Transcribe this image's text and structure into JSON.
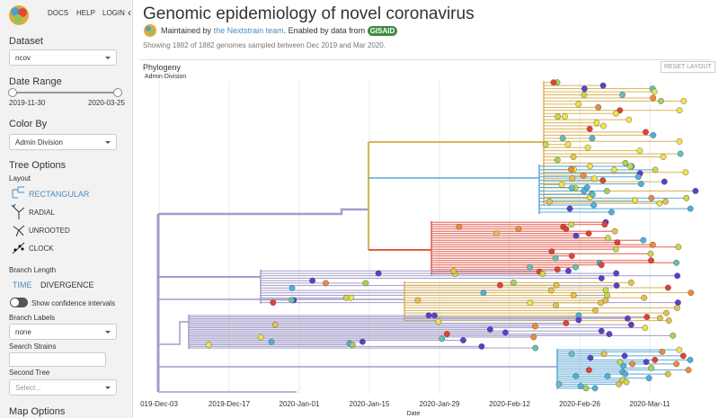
{
  "sidebar": {
    "nav": [
      "DOCS",
      "HELP",
      "LOGIN"
    ],
    "dataset": {
      "label": "Dataset",
      "value": "ncov"
    },
    "date_range": {
      "label": "Date Range",
      "start": "2019-11-30",
      "end": "2020-03-25"
    },
    "color_by": {
      "label": "Color By",
      "value": "Admin Division"
    },
    "tree_options": {
      "title": "Tree Options",
      "layout_label": "Layout",
      "layouts": [
        "RECTANGULAR",
        "RADIAL",
        "UNROOTED",
        "CLOCK"
      ],
      "branch_length_label": "Branch Length",
      "branch_lengths": [
        "TIME",
        "DIVERGENCE"
      ],
      "confidence": "Show confidence intervals",
      "branch_labels": {
        "label": "Branch Labels",
        "value": "none"
      },
      "search_label": "Search Strains",
      "second_tree": {
        "label": "Second Tree",
        "placeholder": "Select..."
      }
    },
    "map_options": "Map Options"
  },
  "header": {
    "title": "Genomic epidemiology of novel coronavirus",
    "maintained_prefix": "Maintained by",
    "maintainer": "the Nextstrain team",
    "enabled": ". Enabled by data from",
    "gisaid": "GISAID",
    "summary": "Showing 1882 of 1882 genomes sampled between Dec 2019 and Mar 2020."
  },
  "panel": {
    "title": "Phylogeny",
    "color_select": "Admin Division",
    "reset": "RESET LAYOUT",
    "x_ticks": [
      "019-Dec-03",
      "2019-Dec-17",
      "2020-Jan-01",
      "2020-Jan-15",
      "2020-Jan-29",
      "2020-Feb-12",
      "2020-Feb-26",
      "2020-Mar-11"
    ],
    "x_label": "Date"
  }
}
